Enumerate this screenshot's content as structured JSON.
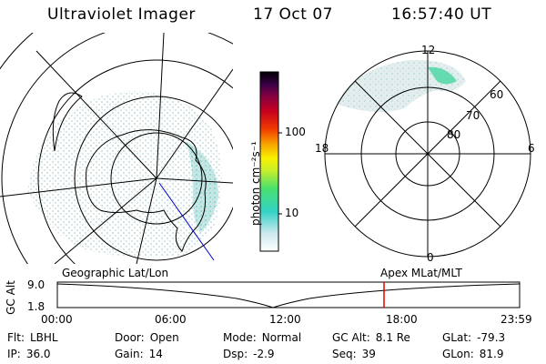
{
  "header": {
    "title": "Ultraviolet Imager",
    "date": "17 Oct 07",
    "time": "16:57:40 UT"
  },
  "colorbar": {
    "label": "photon cm⁻²s⁻¹",
    "ticks": [
      "100",
      "10"
    ]
  },
  "polar_plot": {
    "mlt_labels": [
      "12",
      "18",
      "6",
      "0"
    ],
    "lat_labels": [
      "60",
      "70",
      "80"
    ]
  },
  "timeline": {
    "left_label": "Geographic Lat/Lon",
    "right_label": "Apex MLat/MLT",
    "y_axis_label": "GC Alt",
    "y_ticks": [
      "9.0",
      "1.8"
    ],
    "x_ticks": [
      "00:00",
      "06:00",
      "12:00",
      "18:00",
      "23:59"
    ],
    "current_time_fraction": 0.7067
  },
  "footer": {
    "rows": [
      [
        {
          "label": "Flt:",
          "value": "LBHL"
        },
        {
          "label": "Door:",
          "value": "Open"
        },
        {
          "label": "Mode:",
          "value": "Normal"
        },
        {
          "label": "GC Alt:",
          "value": "8.1 Re"
        },
        {
          "label": "GLat:",
          "value": "-79.3"
        }
      ],
      [
        {
          "label": "IP:",
          "value": "36.0"
        },
        {
          "label": "Gain:",
          "value": "14"
        },
        {
          "label": "Dsp:",
          "value": "-2.9"
        },
        {
          "label": "Seq:",
          "value": "39"
        },
        {
          "label": "GLon:",
          "value": "81.9"
        }
      ]
    ]
  }
}
